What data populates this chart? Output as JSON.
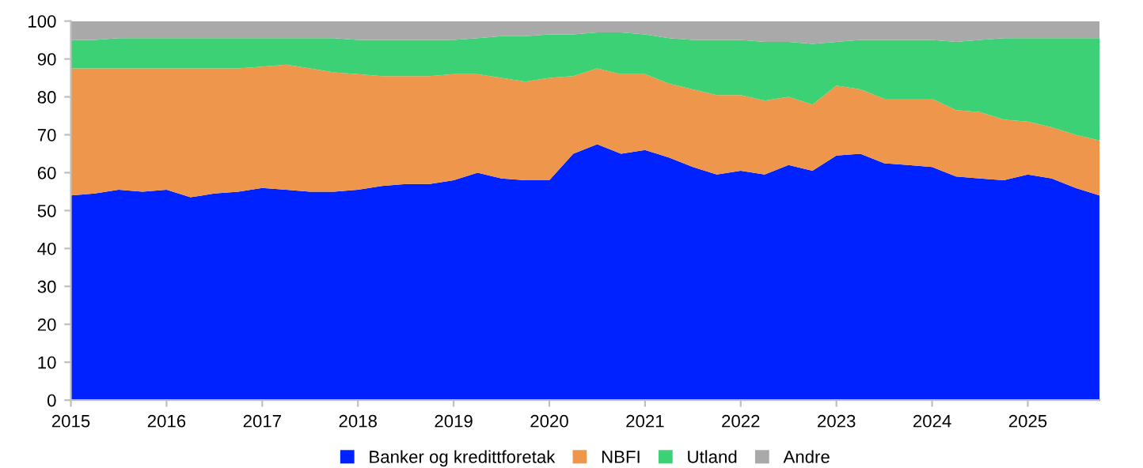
{
  "chart_data": {
    "type": "area",
    "stacked": true,
    "x": [
      2015,
      2015.25,
      2015.5,
      2015.75,
      2016,
      2016.25,
      2016.5,
      2016.75,
      2017,
      2017.25,
      2017.5,
      2017.75,
      2018,
      2018.25,
      2018.5,
      2018.75,
      2019,
      2019.25,
      2019.5,
      2019.75,
      2020,
      2020.25,
      2020.5,
      2020.75,
      2021,
      2021.25,
      2021.5,
      2021.75,
      2022,
      2022.25,
      2022.5,
      2022.75,
      2023,
      2023.25,
      2023.5,
      2023.75,
      2024,
      2024.25,
      2024.5,
      2024.75,
      2025,
      2025.25,
      2025.5,
      2025.75
    ],
    "series": [
      {
        "name": "Banker og kredittforetak",
        "color": "#0022ff",
        "values": [
          54,
          54.5,
          55.5,
          55,
          55.5,
          53.5,
          54.5,
          55,
          56,
          55.5,
          55,
          55,
          55.5,
          56.5,
          57,
          57,
          58,
          60,
          58.5,
          58,
          58,
          65,
          67.5,
          65,
          66,
          64,
          61.5,
          59.5,
          60.5,
          59.5,
          62,
          60.5,
          64.5,
          65,
          62.5,
          62,
          61.5,
          59,
          58.5,
          58,
          59.5,
          58.5,
          56,
          54
        ]
      },
      {
        "name": "NBFI",
        "color": "#ee964b",
        "values": [
          33.5,
          33,
          32,
          32.5,
          32,
          34,
          33,
          32.5,
          32,
          33,
          32.5,
          31.5,
          30.5,
          29,
          28.5,
          28.5,
          28,
          26,
          26.5,
          26,
          27,
          20.5,
          20,
          21,
          20,
          19.5,
          20.5,
          21,
          20,
          19.5,
          18,
          17.5,
          18.5,
          17,
          17,
          17.5,
          18,
          17.5,
          17.5,
          16,
          14,
          13.5,
          14,
          14.5
        ]
      },
      {
        "name": "Utland",
        "color": "#3dd175",
        "values": [
          7.5,
          7.5,
          8,
          8,
          8,
          8,
          8,
          8,
          7.5,
          7,
          8,
          9,
          9,
          9.5,
          9.5,
          9.5,
          9,
          9.5,
          11,
          12,
          11.5,
          11,
          9.5,
          11,
          10.5,
          12,
          13,
          14.5,
          14.5,
          15.5,
          14.5,
          16,
          11.5,
          13,
          15.5,
          15.5,
          15.5,
          18,
          19,
          21.5,
          22,
          23.5,
          25.5,
          27
        ]
      },
      {
        "name": "Andre",
        "color": "#a9a9a9",
        "values": [
          5,
          5,
          4.5,
          4.5,
          4.5,
          4.5,
          4.5,
          4.5,
          4.5,
          4.5,
          4.5,
          4.5,
          5,
          5,
          5,
          5,
          5,
          4.5,
          4,
          4,
          3.5,
          3.5,
          3,
          3,
          3.5,
          4.5,
          5,
          5,
          5,
          5.5,
          5.5,
          6,
          5.5,
          5,
          5,
          5,
          5,
          5.5,
          5,
          4.5,
          4.5,
          4.5,
          4.5,
          4.5
        ]
      }
    ],
    "xlim": [
      2015,
      2025.75
    ],
    "xticks": [
      2015,
      2016,
      2017,
      2018,
      2019,
      2020,
      2021,
      2022,
      2023,
      2024,
      2025
    ],
    "ylim": [
      0,
      100
    ],
    "yticks": [
      0,
      10,
      20,
      30,
      40,
      50,
      60,
      70,
      80,
      90,
      100
    ],
    "legend": "bottom"
  }
}
